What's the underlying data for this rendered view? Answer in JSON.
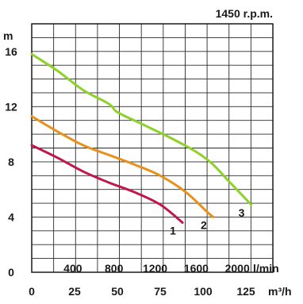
{
  "chart_data": {
    "type": "line",
    "title": "1450 r.p.m.",
    "ylabel": "m",
    "x_lpm_label": "l/min",
    "x_m3h_label": "m³/h",
    "ylim": [
      0,
      18
    ],
    "x_lpm_ticks": [
      "400",
      "800",
      "1200",
      "1600",
      "2000"
    ],
    "x_m3h_ticks": [
      "0",
      "25",
      "50",
      "75",
      "100",
      "125"
    ],
    "y_ticks": [
      "0",
      "4",
      "8",
      "12",
      "16"
    ],
    "grid": true,
    "series": [
      {
        "name": "1",
        "color": "#c0184b",
        "points": [
          [
            0,
            9.2
          ],
          [
            15,
            8.3
          ],
          [
            30,
            7.3
          ],
          [
            45,
            6.5
          ],
          [
            60,
            5.8
          ],
          [
            75,
            4.9
          ],
          [
            88,
            3.6
          ]
        ]
      },
      {
        "name": "2",
        "color": "#e8901c",
        "points": [
          [
            0,
            11.3
          ],
          [
            15,
            10.2
          ],
          [
            30,
            9.2
          ],
          [
            45,
            8.5
          ],
          [
            60,
            7.8
          ],
          [
            75,
            7.0
          ],
          [
            90,
            5.8
          ],
          [
            103,
            4.3
          ],
          [
            106,
            4.0
          ]
        ]
      },
      {
        "name": "3",
        "color": "#8dd12a",
        "points": [
          [
            0,
            15.8
          ],
          [
            15,
            14.6
          ],
          [
            30,
            13.2
          ],
          [
            45,
            12.2
          ],
          [
            50,
            11.6
          ],
          [
            65,
            10.7
          ],
          [
            80,
            9.8
          ],
          [
            95,
            8.8
          ],
          [
            105,
            7.9
          ],
          [
            115,
            6.6
          ],
          [
            125,
            5.3
          ],
          [
            128,
            4.9
          ]
        ]
      }
    ]
  }
}
